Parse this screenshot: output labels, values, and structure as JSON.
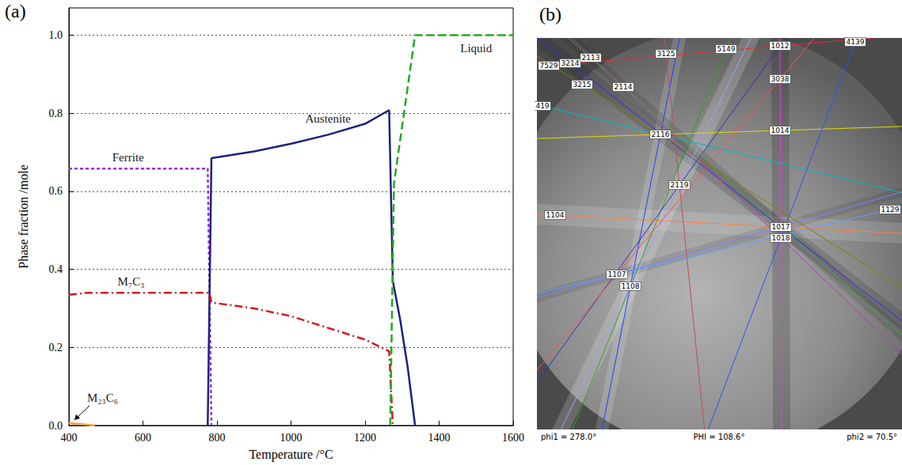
{
  "chart_data": {
    "type": "line",
    "x_label": "Temperature /°C",
    "y_label": "Phase fraction /mole",
    "xlim": [
      400,
      1600
    ],
    "xticks": [
      400,
      600,
      800,
      1000,
      1200,
      1400,
      1600
    ],
    "ylim": [
      0,
      1.07
    ],
    "yticks": [
      {
        "value": 0,
        "label": "0.0"
      },
      0.2,
      0.4,
      0.6,
      0.8,
      {
        "value": 1,
        "label": "1.0"
      }
    ],
    "grid": true,
    "series": [
      {
        "name": "Ferrite",
        "color": "#9b30d9",
        "line_style": "dotted",
        "x": [
          400,
          500,
          600,
          700,
          775,
          785
        ],
        "values": [
          0.658,
          0.658,
          0.658,
          0.658,
          0.658,
          0
        ]
      },
      {
        "name": "Austenite",
        "color": "#1a237e",
        "line_style": "solid",
        "x": [
          775,
          785,
          900,
          1000,
          1100,
          1200,
          1265,
          1275,
          1295,
          1315,
          1335
        ],
        "values": [
          0,
          0.685,
          0.702,
          0.722,
          0.745,
          0.773,
          0.808,
          0.37,
          0.27,
          0.15,
          0
        ]
      },
      {
        "name": "M₇C₃",
        "color": "#d7191c",
        "line_style": "dashdot",
        "x": [
          400,
          450,
          600,
          780,
          785,
          900,
          1000,
          1100,
          1200,
          1265,
          1275
        ],
        "values": [
          0.335,
          0.34,
          0.34,
          0.34,
          0.315,
          0.3,
          0.28,
          0.25,
          0.22,
          0.19,
          0
        ]
      },
      {
        "name": "Liquid",
        "color": "#22aa22",
        "line_style": "dashed",
        "x": [
          1268,
          1278,
          1335,
          1500,
          1600
        ],
        "values": [
          0,
          0.62,
          1.0,
          1.0,
          1.0
        ]
      },
      {
        "name": "M₂₃C₆",
        "color": "#f0a030",
        "line_style": "solid",
        "x": [
          400,
          470
        ],
        "values": [
          0.006,
          0
        ]
      }
    ]
  },
  "panel_labels": [
    "(a)",
    "(b)"
  ],
  "ebsd_pattern": {
    "zone_labels": [
      "7529",
      "3214",
      "2113",
      "3125",
      "5149",
      "1012",
      "4139",
      "3215",
      "2114",
      "3038",
      "419",
      "2116",
      "1014",
      "2119",
      "1129",
      "1104",
      "1017",
      "1018",
      "1107",
      "1108"
    ],
    "euler_angles": [
      "phi1 = 278.0°",
      "PHI = 108.6°",
      "phi2 = 70.5°"
    ]
  }
}
